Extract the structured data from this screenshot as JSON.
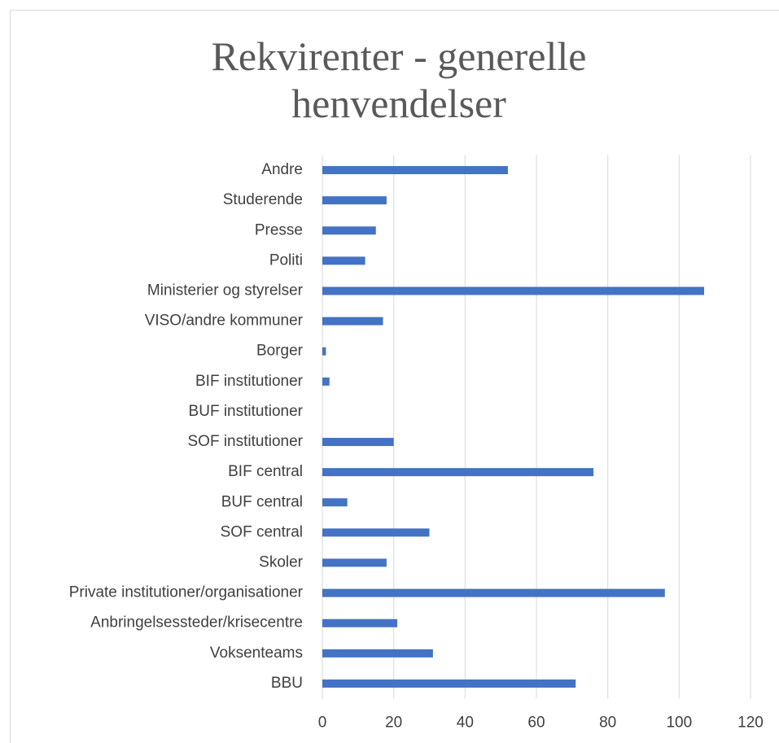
{
  "chart_data": {
    "type": "barh",
    "title": "Rekvirenter - generelle henvendelser",
    "categories": [
      "Andre",
      "Studerende",
      "Presse",
      "Politi",
      "Ministerier og styrelser",
      "VISO/andre kommuner",
      "Borger",
      "BIF institutioner",
      "BUF institutioner",
      "SOF institutioner",
      "BIF central",
      "BUF central",
      "SOF central",
      "Skoler",
      "Private institutioner/organisationer",
      "Anbringelsessteder/krisecentre",
      "Voksenteams",
      "BBU"
    ],
    "values": [
      52,
      18,
      15,
      12,
      107,
      17,
      1,
      2,
      0,
      20,
      76,
      7,
      30,
      18,
      96,
      21,
      31,
      71
    ],
    "color": "#4472c4",
    "xlim": [
      0,
      120
    ],
    "xticks": [
      0,
      20,
      40,
      60,
      80,
      100,
      120
    ],
    "grid": true
  }
}
